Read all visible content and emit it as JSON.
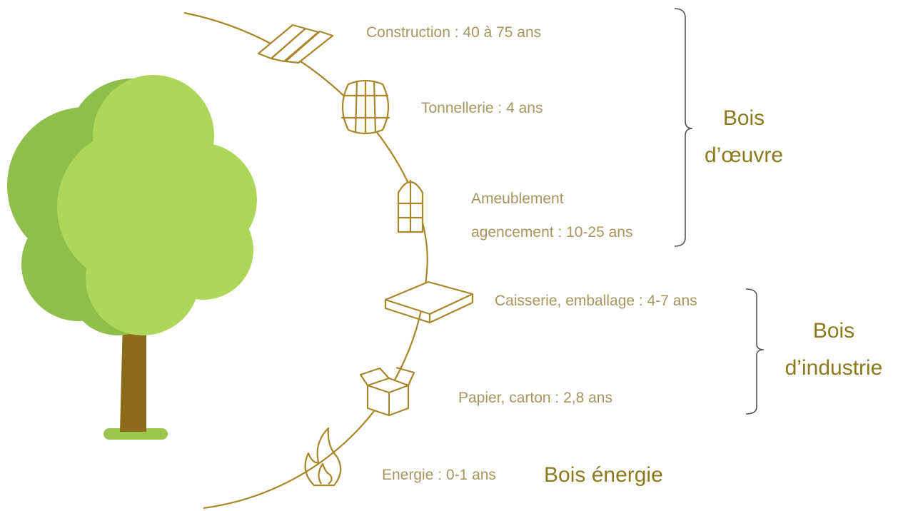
{
  "items": [
    {
      "lines": [
        "Construction : 40 à 75 ans"
      ]
    },
    {
      "lines": [
        "Tonnellerie : 4 ans"
      ]
    },
    {
      "lines": [
        "Ameublement",
        "agencement : 10-25 ans"
      ]
    },
    {
      "lines": [
        "Caisserie, emballage : 4-7 ans"
      ]
    },
    {
      "lines": [
        "Papier, carton : 2,8 ans"
      ]
    },
    {
      "lines": [
        "Energie : 0-1 ans"
      ]
    }
  ],
  "groups": [
    {
      "lines": [
        "Bois",
        "d’œuvre"
      ]
    },
    {
      "lines": [
        "Bois",
        "d’industrie"
      ]
    },
    {
      "lines": [
        "Bois énergie"
      ]
    }
  ]
}
